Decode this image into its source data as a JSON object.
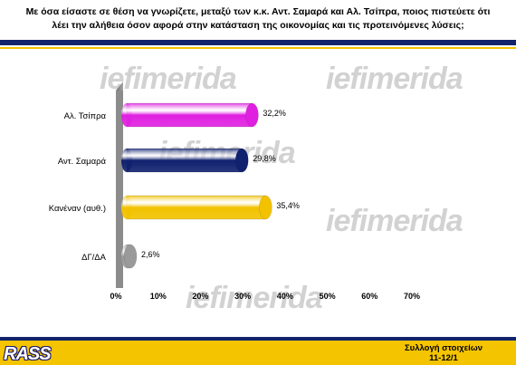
{
  "header": {
    "line1": "Με όσα είσαστε σε θέση να γνωρίζετε, μεταξύ των κ.κ. Αντ. Σαμαρά και Αλ. Τσίπρα, ποιος πιστεύετε ότι",
    "line2": "λέει την αλήθεια όσον αφορά στην κατάσταση της οικονομίας και τις προτεινόμενες λύσεις;"
  },
  "watermark": "iefimerida",
  "chart_data": {
    "type": "bar",
    "orientation": "horizontal",
    "categories": [
      "Αλ. Τσίπρα",
      "Αντ. Σαμαρά",
      "Κανέναν (αυθ.)",
      "ΔΓ/ΔΑ"
    ],
    "values": [
      32.2,
      29.8,
      35.4,
      2.6
    ],
    "value_labels": [
      "32,2%",
      "29,8%",
      "35,4%",
      "2,6%"
    ],
    "colors": [
      "#e020e0",
      "#10216f",
      "#f2c200",
      "#9a9a9a"
    ],
    "xlim": [
      0,
      70
    ],
    "ticks": [
      "0%",
      "10%",
      "20%",
      "30%",
      "40%",
      "50%",
      "60%",
      "70%"
    ],
    "grid": false
  },
  "footer": {
    "logo": "RASS",
    "line1": "Συλλογή στοιχείων",
    "line2": "11-12/1"
  }
}
